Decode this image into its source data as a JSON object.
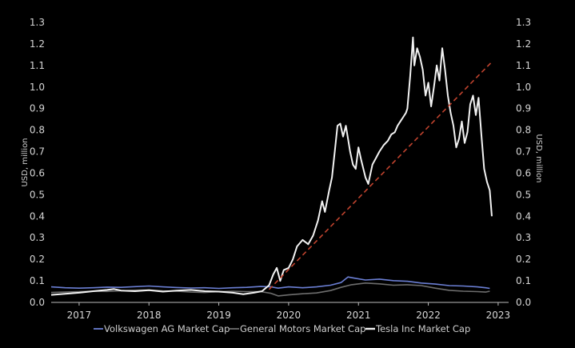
{
  "chart_data": {
    "type": "line",
    "ylabel_left": "USD, million",
    "ylabel_right": "USD, million",
    "ylim": [
      0,
      1.3
    ],
    "yticks": [
      "0.0",
      "0.1",
      "0.2",
      "0.3",
      "0.4",
      "0.5",
      "0.6",
      "0.7",
      "0.8",
      "0.9",
      "1.0",
      "1.1",
      "1.2",
      "1.3"
    ],
    "xlim": [
      2016.6,
      2023.15
    ],
    "xticks": [
      "2017",
      "2018",
      "2019",
      "2020",
      "2021",
      "2022",
      "2023"
    ],
    "grid": false,
    "legend_position": "bottom",
    "series": [
      {
        "name": "Volkswagen AG Market Cap",
        "color": "#6b7fd4",
        "points": [
          [
            2016.6,
            0.072
          ],
          [
            2016.8,
            0.068
          ],
          [
            2017.0,
            0.066
          ],
          [
            2017.2,
            0.068
          ],
          [
            2017.4,
            0.071
          ],
          [
            2017.6,
            0.07
          ],
          [
            2017.8,
            0.073
          ],
          [
            2018.0,
            0.076
          ],
          [
            2018.2,
            0.072
          ],
          [
            2018.4,
            0.069
          ],
          [
            2018.6,
            0.067
          ],
          [
            2018.8,
            0.068
          ],
          [
            2019.0,
            0.065
          ],
          [
            2019.2,
            0.068
          ],
          [
            2019.4,
            0.07
          ],
          [
            2019.6,
            0.074
          ],
          [
            2019.75,
            0.072
          ],
          [
            2019.85,
            0.066
          ],
          [
            2020.0,
            0.072
          ],
          [
            2020.2,
            0.068
          ],
          [
            2020.4,
            0.072
          ],
          [
            2020.6,
            0.08
          ],
          [
            2020.75,
            0.092
          ],
          [
            2020.85,
            0.118
          ],
          [
            2020.95,
            0.112
          ],
          [
            2021.1,
            0.104
          ],
          [
            2021.3,
            0.108
          ],
          [
            2021.5,
            0.101
          ],
          [
            2021.7,
            0.098
          ],
          [
            2021.9,
            0.09
          ],
          [
            2022.1,
            0.085
          ],
          [
            2022.3,
            0.078
          ],
          [
            2022.5,
            0.076
          ],
          [
            2022.7,
            0.072
          ],
          [
            2022.82,
            0.068
          ],
          [
            2022.88,
            0.065
          ]
        ]
      },
      {
        "name": "General Motors Market Cap",
        "color": "#6e6e6e",
        "points": [
          [
            2016.6,
            0.046
          ],
          [
            2016.8,
            0.048
          ],
          [
            2017.0,
            0.05
          ],
          [
            2017.2,
            0.052
          ],
          [
            2017.4,
            0.051
          ],
          [
            2017.6,
            0.054
          ],
          [
            2017.8,
            0.057
          ],
          [
            2018.0,
            0.058
          ],
          [
            2018.2,
            0.054
          ],
          [
            2018.4,
            0.052
          ],
          [
            2018.6,
            0.048
          ],
          [
            2018.8,
            0.046
          ],
          [
            2019.0,
            0.05
          ],
          [
            2019.2,
            0.052
          ],
          [
            2019.4,
            0.05
          ],
          [
            2019.6,
            0.05
          ],
          [
            2019.75,
            0.042
          ],
          [
            2019.85,
            0.03
          ],
          [
            2020.0,
            0.035
          ],
          [
            2020.2,
            0.04
          ],
          [
            2020.4,
            0.044
          ],
          [
            2020.6,
            0.055
          ],
          [
            2020.75,
            0.07
          ],
          [
            2020.9,
            0.082
          ],
          [
            2021.1,
            0.09
          ],
          [
            2021.3,
            0.086
          ],
          [
            2021.5,
            0.08
          ],
          [
            2021.7,
            0.082
          ],
          [
            2021.9,
            0.078
          ],
          [
            2022.1,
            0.066
          ],
          [
            2022.3,
            0.056
          ],
          [
            2022.5,
            0.052
          ],
          [
            2022.7,
            0.05
          ],
          [
            2022.82,
            0.048
          ],
          [
            2022.88,
            0.052
          ]
        ]
      },
      {
        "name": "Tesla Inc Market Cap",
        "color": "#f2f2f2",
        "points": [
          [
            2016.6,
            0.035
          ],
          [
            2016.8,
            0.04
          ],
          [
            2017.0,
            0.045
          ],
          [
            2017.2,
            0.052
          ],
          [
            2017.4,
            0.058
          ],
          [
            2017.5,
            0.062
          ],
          [
            2017.6,
            0.055
          ],
          [
            2017.8,
            0.052
          ],
          [
            2018.0,
            0.057
          ],
          [
            2018.2,
            0.05
          ],
          [
            2018.4,
            0.055
          ],
          [
            2018.6,
            0.058
          ],
          [
            2018.8,
            0.052
          ],
          [
            2019.0,
            0.05
          ],
          [
            2019.2,
            0.045
          ],
          [
            2019.35,
            0.038
          ],
          [
            2019.5,
            0.045
          ],
          [
            2019.62,
            0.052
          ],
          [
            2019.72,
            0.08
          ],
          [
            2019.78,
            0.13
          ],
          [
            2019.83,
            0.16
          ],
          [
            2019.88,
            0.1
          ],
          [
            2019.93,
            0.15
          ],
          [
            2020.0,
            0.16
          ],
          [
            2020.06,
            0.2
          ],
          [
            2020.12,
            0.26
          ],
          [
            2020.2,
            0.29
          ],
          [
            2020.28,
            0.27
          ],
          [
            2020.35,
            0.31
          ],
          [
            2020.42,
            0.38
          ],
          [
            2020.48,
            0.47
          ],
          [
            2020.52,
            0.42
          ],
          [
            2020.58,
            0.52
          ],
          [
            2020.62,
            0.58
          ],
          [
            2020.66,
            0.7
          ],
          [
            2020.7,
            0.82
          ],
          [
            2020.74,
            0.83
          ],
          [
            2020.78,
            0.77
          ],
          [
            2020.82,
            0.82
          ],
          [
            2020.88,
            0.7
          ],
          [
            2020.92,
            0.64
          ],
          [
            2020.96,
            0.62
          ],
          [
            2021.0,
            0.72
          ],
          [
            2021.04,
            0.66
          ],
          [
            2021.1,
            0.58
          ],
          [
            2021.14,
            0.55
          ],
          [
            2021.2,
            0.64
          ],
          [
            2021.25,
            0.67
          ],
          [
            2021.3,
            0.7
          ],
          [
            2021.36,
            0.73
          ],
          [
            2021.42,
            0.75
          ],
          [
            2021.47,
            0.78
          ],
          [
            2021.52,
            0.79
          ],
          [
            2021.56,
            0.82
          ],
          [
            2021.6,
            0.84
          ],
          [
            2021.64,
            0.86
          ],
          [
            2021.68,
            0.88
          ],
          [
            2021.7,
            0.9
          ],
          [
            2021.74,
            1.05
          ],
          [
            2021.78,
            1.23
          ],
          [
            2021.8,
            1.1
          ],
          [
            2021.84,
            1.18
          ],
          [
            2021.88,
            1.14
          ],
          [
            2021.92,
            1.08
          ],
          [
            2021.96,
            0.96
          ],
          [
            2022.0,
            1.02
          ],
          [
            2022.04,
            0.91
          ],
          [
            2022.08,
            1.0
          ],
          [
            2022.12,
            1.1
          ],
          [
            2022.16,
            1.03
          ],
          [
            2022.2,
            1.18
          ],
          [
            2022.24,
            1.08
          ],
          [
            2022.28,
            0.96
          ],
          [
            2022.32,
            0.88
          ],
          [
            2022.36,
            0.82
          ],
          [
            2022.4,
            0.72
          ],
          [
            2022.44,
            0.76
          ],
          [
            2022.48,
            0.84
          ],
          [
            2022.52,
            0.74
          ],
          [
            2022.56,
            0.79
          ],
          [
            2022.6,
            0.92
          ],
          [
            2022.64,
            0.96
          ],
          [
            2022.68,
            0.87
          ],
          [
            2022.72,
            0.95
          ],
          [
            2022.76,
            0.78
          ],
          [
            2022.8,
            0.62
          ],
          [
            2022.84,
            0.56
          ],
          [
            2022.88,
            0.52
          ],
          [
            2022.91,
            0.4
          ]
        ]
      }
    ],
    "trendline": {
      "color": "#c0432e",
      "style": "dashed",
      "from": [
        2019.72,
        0.06
      ],
      "to": [
        2022.92,
        1.12
      ]
    }
  }
}
